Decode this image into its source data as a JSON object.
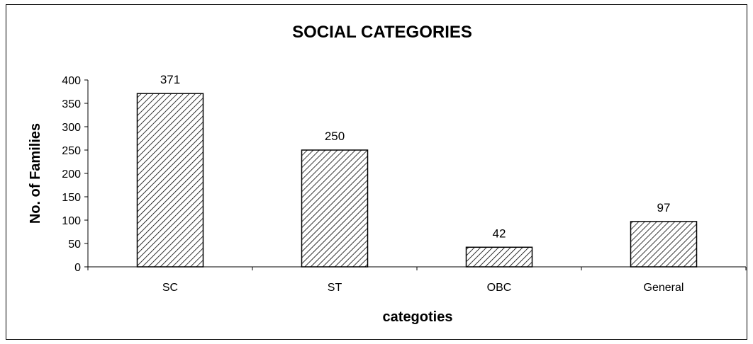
{
  "chart_data": {
    "type": "bar",
    "title": "SOCIAL CATEGORIES",
    "xlabel": "categoties",
    "ylabel": "No. of Families",
    "categories": [
      "SC",
      "ST",
      "OBC",
      "General"
    ],
    "values": [
      371,
      250,
      42,
      97
    ],
    "data_labels": [
      "371",
      "250",
      "42",
      "97"
    ],
    "ylim": [
      0,
      400
    ],
    "yticks": [
      0,
      50,
      100,
      150,
      200,
      250,
      300,
      350,
      400
    ],
    "grid": false,
    "legend": "none",
    "bar_fill": "diagonal-hatch",
    "colors": {
      "bar_stroke": "#000000",
      "hatch": "#000000",
      "background": "#ffffff"
    }
  }
}
